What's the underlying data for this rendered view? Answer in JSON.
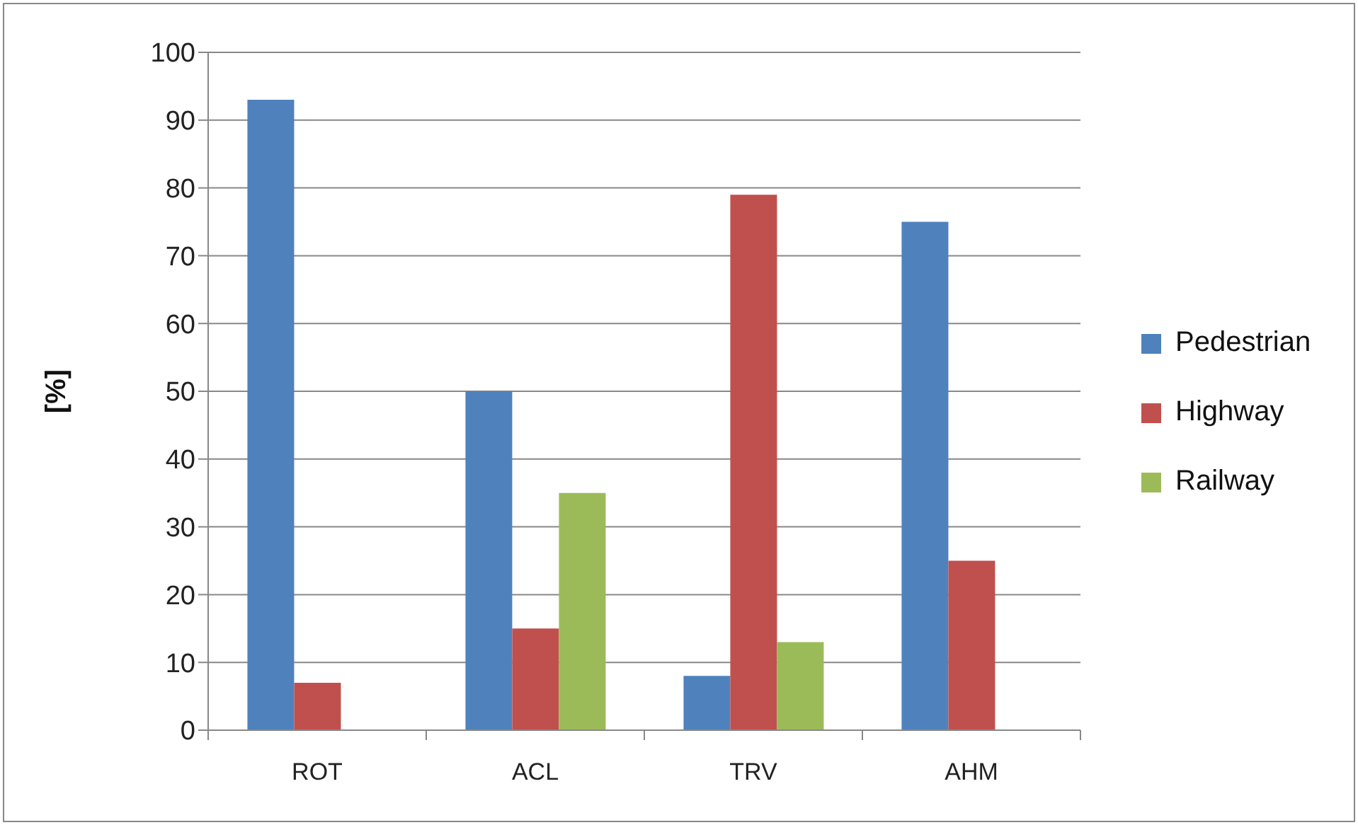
{
  "chart_data": {
    "type": "bar",
    "ylabel": "[%]",
    "categories": [
      "ROT",
      "ACL",
      "TRV",
      "AHM"
    ],
    "series": [
      {
        "name": "Pedestrian",
        "color": "#4f81bd",
        "values": [
          93,
          50,
          8,
          75
        ]
      },
      {
        "name": "Highway",
        "color": "#c0504d",
        "values": [
          7,
          15,
          79,
          25
        ]
      },
      {
        "name": "Railway",
        "color": "#9bbb59",
        "values": [
          null,
          35,
          13,
          null
        ]
      }
    ],
    "ylim": [
      0,
      100
    ],
    "yticks": [
      0,
      10,
      20,
      30,
      40,
      50,
      60,
      70,
      80,
      90,
      100
    ],
    "grid": "y",
    "legend": "right"
  }
}
